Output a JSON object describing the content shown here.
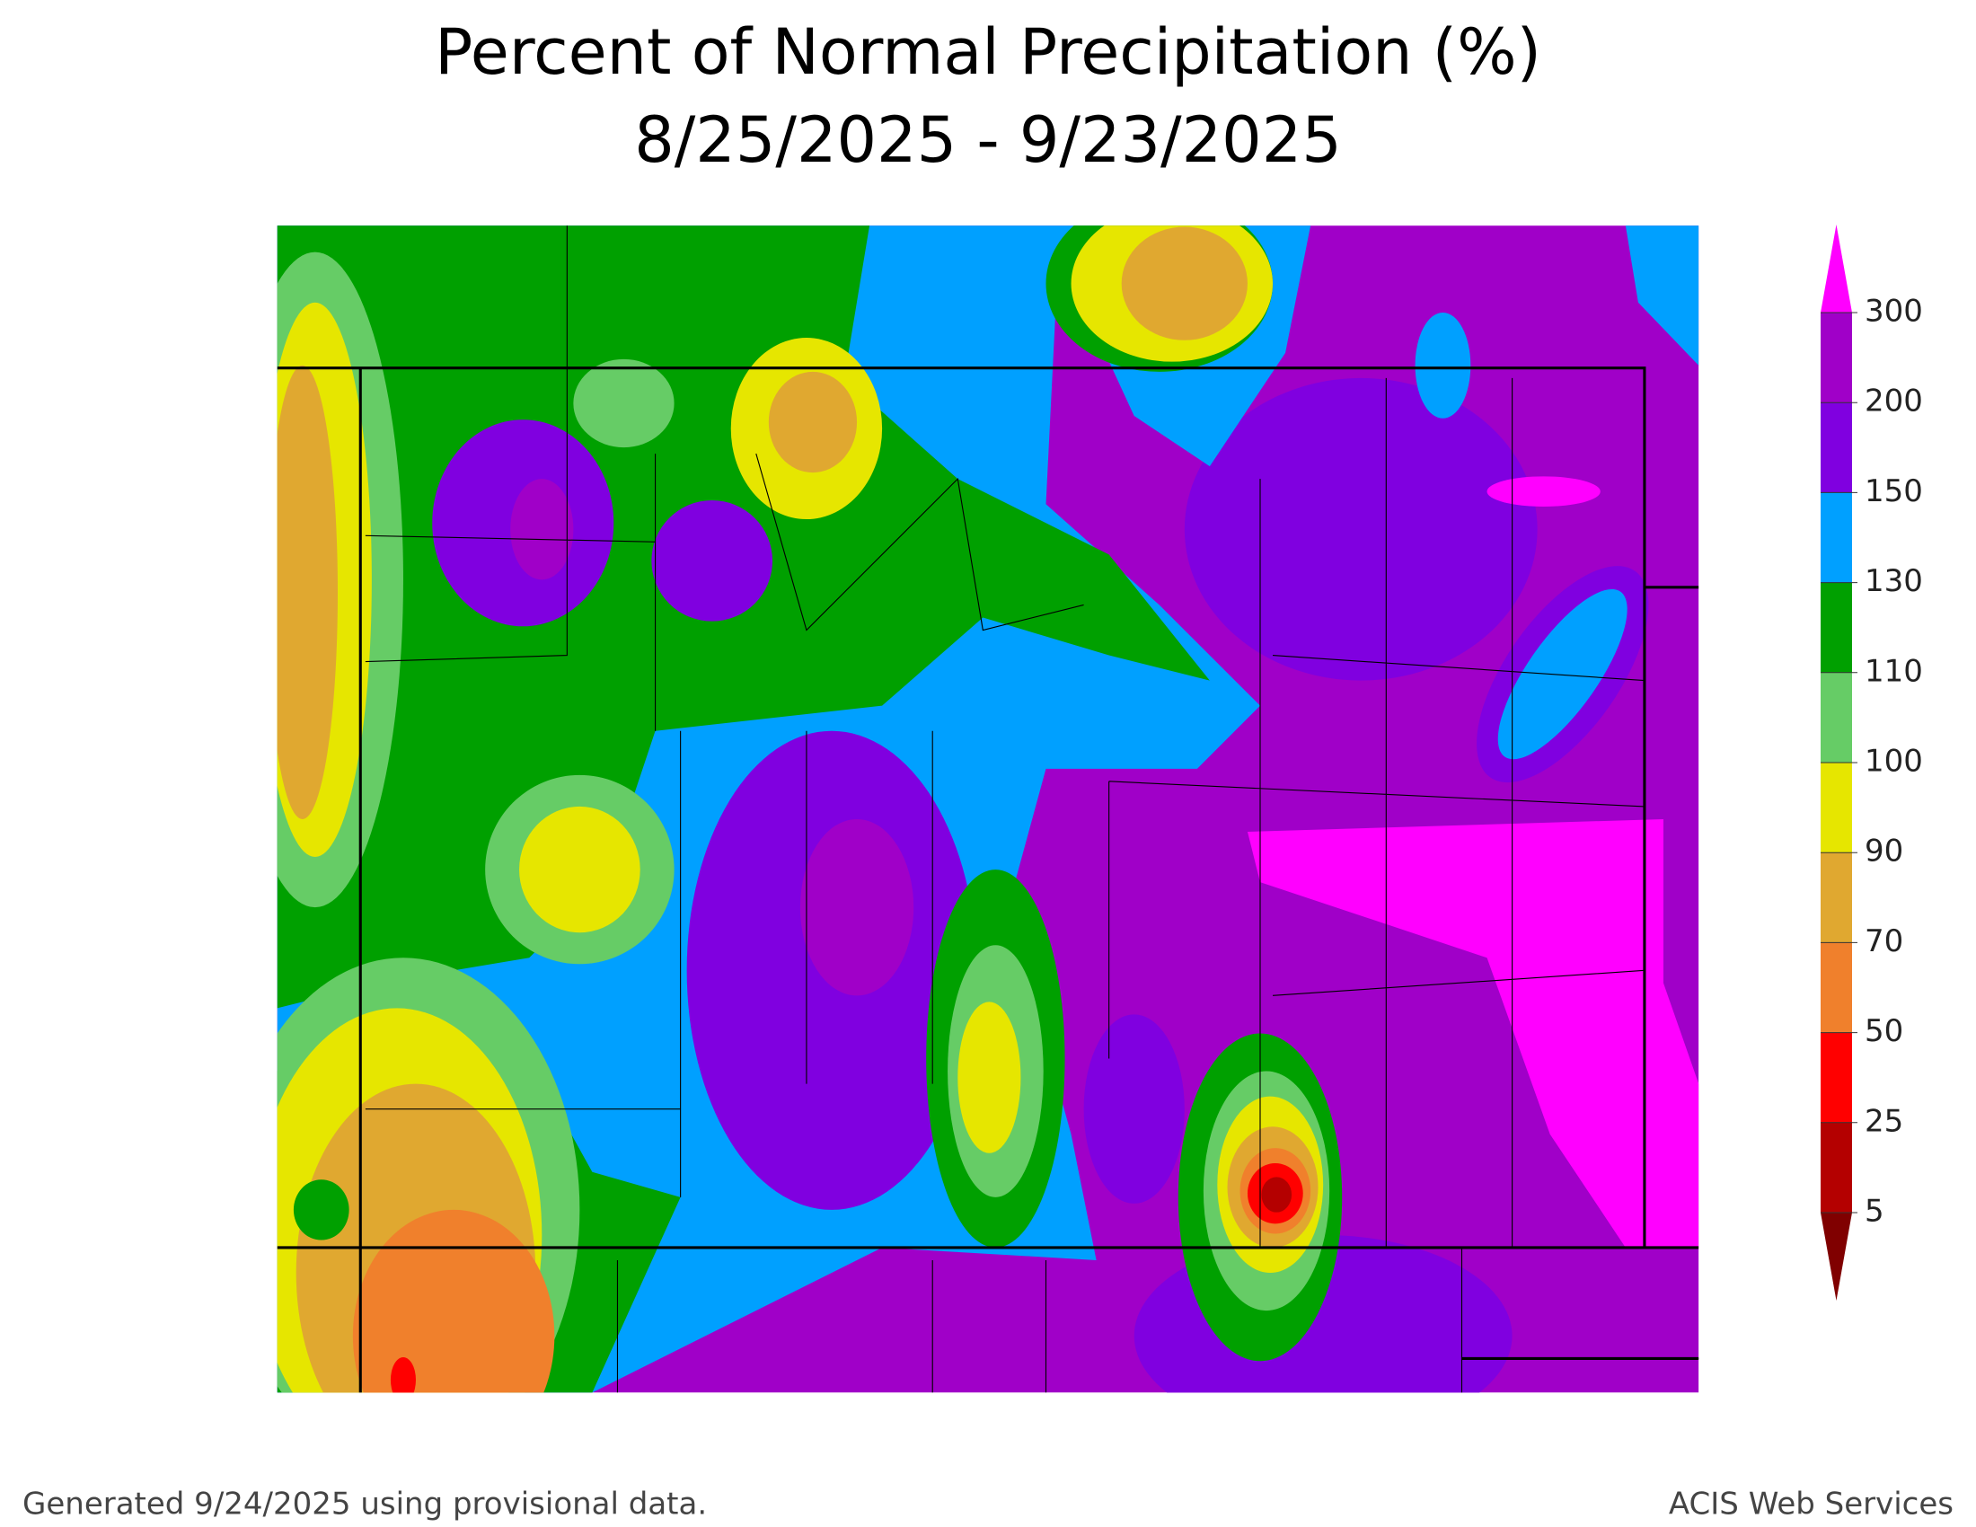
{
  "header": {
    "title": [
      "Percent of Normal Precipitation (%)",
      "8/25/2025 - 9/23/2025"
    ]
  },
  "legend": {
    "levels": [
      5,
      25,
      50,
      70,
      90,
      100,
      110,
      130,
      150,
      200,
      300
    ],
    "colors": [
      "#800000",
      "#b40000",
      "#ff0000",
      "#f0802c",
      "#e0a830",
      "#e6e600",
      "#66cc66",
      "#00a000",
      "#00a0ff",
      "#8000e0",
      "#a000c8",
      "#ff00ff"
    ]
  },
  "footer": {
    "left": "Generated 9/24/2025 using provisional data.",
    "right": "ACIS Web Services"
  }
}
